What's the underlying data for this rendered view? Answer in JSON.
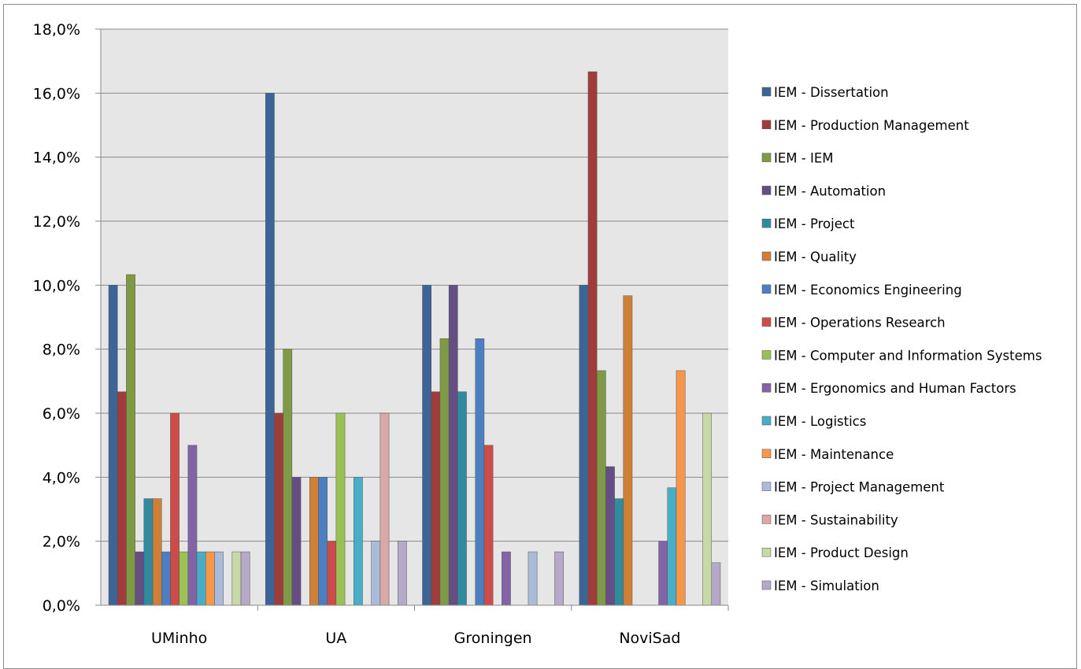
{
  "chart_data": {
    "type": "bar",
    "categories": [
      "UMinho",
      "UA",
      "Groningen",
      "NoviSad"
    ],
    "ylim": [
      0,
      18
    ],
    "y_ticks": [
      "0,0%",
      "2,0%",
      "4,0%",
      "6,0%",
      "8,0%",
      "10,0%",
      "12,0%",
      "14,0%",
      "16,0%",
      "18,0%"
    ],
    "grid": true,
    "legend_position": "right",
    "series": [
      {
        "name": "IEM - Dissertation",
        "color": "#3c6496",
        "values": [
          10.0,
          16.0,
          10.0,
          10.0
        ]
      },
      {
        "name": "IEM - Production Management",
        "color": "#a03c3a",
        "values": [
          6.67,
          6.0,
          6.67,
          16.67
        ]
      },
      {
        "name": "IEM - IEM",
        "color": "#7e9a45",
        "values": [
          10.33,
          8.0,
          8.33,
          7.33
        ]
      },
      {
        "name": "IEM - Automation",
        "color": "#654e84",
        "values": [
          1.67,
          4.0,
          10.0,
          4.33
        ]
      },
      {
        "name": "IEM - Project",
        "color": "#318b9e",
        "values": [
          3.33,
          0,
          6.67,
          3.33
        ]
      },
      {
        "name": "IEM - Quality",
        "color": "#d07f36",
        "values": [
          3.33,
          4.0,
          0,
          9.67
        ]
      },
      {
        "name": "IEM - Economics Engineering",
        "color": "#4c7fc2",
        "values": [
          1.67,
          4.0,
          8.33,
          0
        ]
      },
      {
        "name": "IEM - Operations Research",
        "color": "#cd4b48",
        "values": [
          6.0,
          2.0,
          5.0,
          0
        ]
      },
      {
        "name": "IEM - Computer and Information Systems",
        "color": "#9ac154",
        "values": [
          1.67,
          6.0,
          0,
          0
        ]
      },
      {
        "name": "IEM - Ergonomics and Human Factors",
        "color": "#8264a6",
        "values": [
          5.0,
          0,
          1.67,
          2.0
        ]
      },
      {
        "name": "IEM - Logistics",
        "color": "#48aec8",
        "values": [
          1.67,
          4.0,
          0,
          3.67
        ]
      },
      {
        "name": "IEM - Maintenance",
        "color": "#f6974a",
        "values": [
          1.67,
          0,
          0,
          7.33
        ]
      },
      {
        "name": "IEM - Project Management",
        "color": "#a9bbd8",
        "values": [
          1.67,
          2.0,
          1.67,
          0
        ]
      },
      {
        "name": "IEM - Sustainability",
        "color": "#d9a8a7",
        "values": [
          0,
          6.0,
          0,
          0
        ]
      },
      {
        "name": "IEM - Product Design",
        "color": "#c8d9a8",
        "values": [
          1.67,
          0,
          0,
          6.0
        ]
      },
      {
        "name": "IEM - Simulation",
        "color": "#b6a8c8",
        "values": [
          1.67,
          2.0,
          1.67,
          1.33
        ]
      }
    ]
  }
}
